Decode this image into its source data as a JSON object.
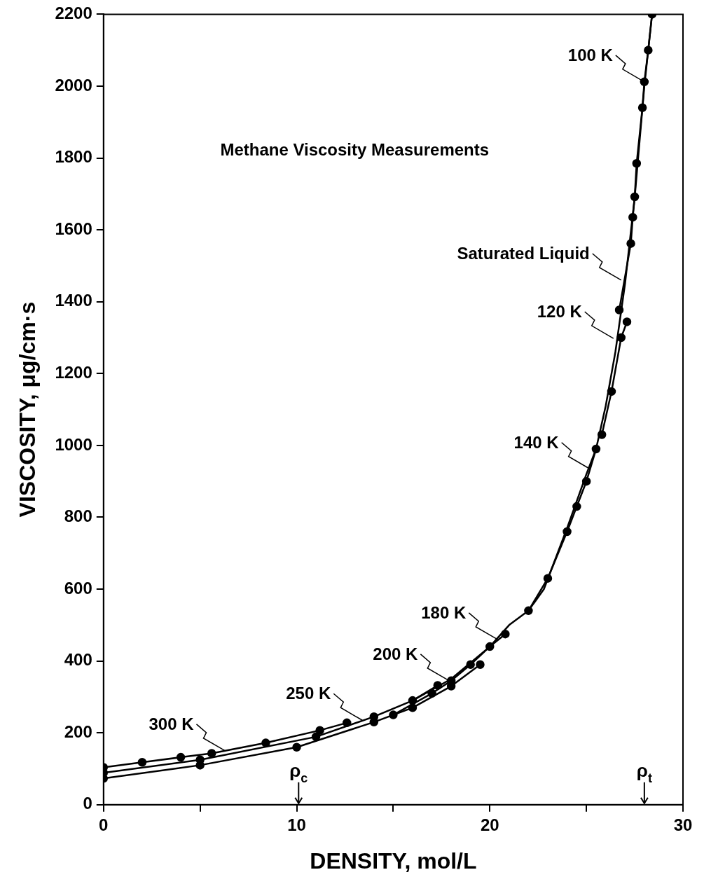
{
  "chart_data": {
    "type": "line",
    "title": "Methane Viscosity Measurements",
    "xlabel": "DENSITY, mol/L",
    "ylabel": "VISCOSITY, μg/cm·s",
    "xlim": [
      0,
      30
    ],
    "xticks": [
      0,
      {
        "value": 5,
        "label": null
      },
      10,
      {
        "value": 15,
        "label": null
      },
      20,
      {
        "value": 25,
        "label": null
      },
      30
    ],
    "ylim": [
      0,
      2200
    ],
    "yticks": [
      0,
      200,
      400,
      600,
      800,
      1000,
      1200,
      1400,
      1600,
      1800,
      2000,
      2200
    ],
    "grid": false,
    "legend": false,
    "marker": "circle",
    "line_style": "solid",
    "series": [
      {
        "color": "#000000",
        "x": [
          0,
          2,
          4,
          5.6,
          8.4,
          11.2,
          12.6
        ],
        "values": [
          104,
          118,
          132,
          143,
          172,
          207,
          228
        ]
      },
      {
        "color": "#000000",
        "x": [
          0,
          5,
          11,
          14,
          16,
          17.3
        ],
        "values": [
          89,
          125,
          189,
          245,
          290,
          332
        ]
      },
      {
        "color": "#000000",
        "x": [
          0,
          5,
          10,
          14,
          16,
          18,
          19.5
        ],
        "values": [
          73,
          110,
          160,
          230,
          270,
          330,
          390
        ]
      },
      {
        "color": "#000000",
        "x": [
          15,
          17,
          18,
          19,
          20,
          20.8
        ],
        "values": [
          250,
          310,
          345,
          390,
          440,
          475
        ]
      },
      {
        "color": "#000000",
        "x": [
          22,
          23,
          24,
          24.5,
          25,
          25.5
        ],
        "values": [
          540,
          630,
          760,
          830,
          900,
          990
        ]
      },
      {
        "color": "#000000",
        "x": [
          25.8,
          26.3,
          26.8,
          27.1
        ],
        "values": [
          1030,
          1150,
          1300,
          1344
        ]
      },
      {
        "color": "#000000",
        "x": [
          26.7,
          27.3,
          27.4,
          27.5,
          27.6,
          27.9,
          28,
          28.2,
          28.4
        ],
        "values": [
          1377,
          1562,
          1635,
          1692,
          1785,
          1940,
          2012,
          2100,
          2200
        ]
      },
      {
        "color": "#000000",
        "marker": "none",
        "x": [
          16,
          18,
          20,
          21,
          22,
          22.8,
          24,
          25,
          25.5,
          26,
          26.5,
          27,
          27.5,
          28,
          28.4
        ],
        "values": [
          290,
          350,
          440,
          500,
          540,
          600,
          770,
          920,
          990,
          1110,
          1260,
          1450,
          1690,
          2000,
          2200
        ]
      }
    ],
    "annotations": [
      {
        "text": "100 K",
        "x": 28,
        "y": 2012
      },
      {
        "text": "Saturated Liquid",
        "x": 26.8,
        "y": 1460
      },
      {
        "text": "120 K",
        "x": 26.4,
        "y": 1298
      },
      {
        "text": "140 K",
        "x": 25.2,
        "y": 934
      },
      {
        "text": "180 K",
        "x": 20.4,
        "y": 460
      },
      {
        "text": "200 K",
        "x": 17.9,
        "y": 345
      },
      {
        "text": "250 K",
        "x": 13.4,
        "y": 235
      },
      {
        "text": "300 K",
        "x": 6.3,
        "y": 150
      }
    ],
    "ref_lines": [
      {
        "axis": "x",
        "value": 10.1,
        "label": "ρ$_{c}$"
      },
      {
        "axis": "x",
        "value": 28,
        "label": "ρ$_{t}$"
      }
    ]
  }
}
